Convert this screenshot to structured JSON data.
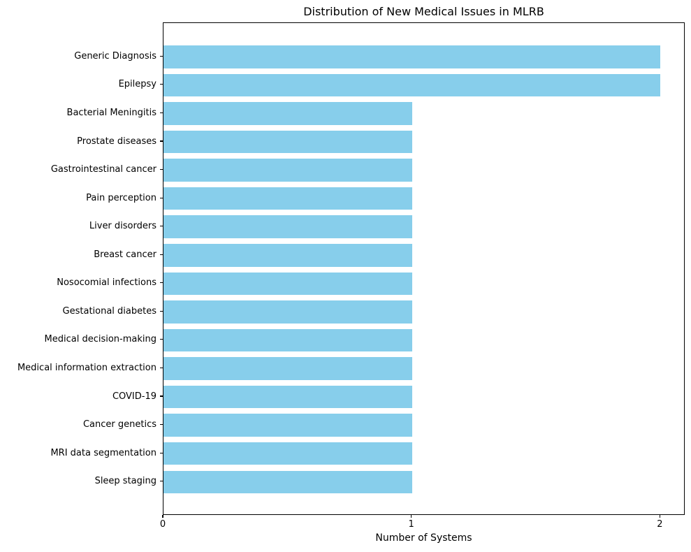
{
  "chart_data": {
    "type": "bar",
    "orientation": "horizontal",
    "title": "Distribution of New Medical Issues in MLRB",
    "xlabel": "Number of Systems",
    "ylabel": "",
    "categories": [
      "Generic Diagnosis",
      "Epilepsy",
      "Bacterial Meningitis",
      "Prostate diseases",
      "Gastrointestinal cancer",
      "Pain perception",
      "Liver disorders",
      "Breast cancer",
      "Nosocomial infections",
      "Gestational diabetes",
      "Medical decision-making",
      "Medical information extraction",
      "COVID-19",
      "Cancer genetics",
      "MRI data segmentation",
      "Sleep staging"
    ],
    "values": [
      2,
      2,
      1,
      1,
      1,
      1,
      1,
      1,
      1,
      1,
      1,
      1,
      1,
      1,
      1,
      1
    ],
    "x_ticks": [
      "0",
      "1",
      "2"
    ],
    "x_tick_values": [
      0,
      1,
      2
    ],
    "xlim": [
      0,
      2.1
    ],
    "grid": false,
    "legend_position": "none",
    "colors": {
      "bar": "#87CEEB",
      "axis": "#000000",
      "text": "#000000",
      "background": "#ffffff"
    }
  }
}
